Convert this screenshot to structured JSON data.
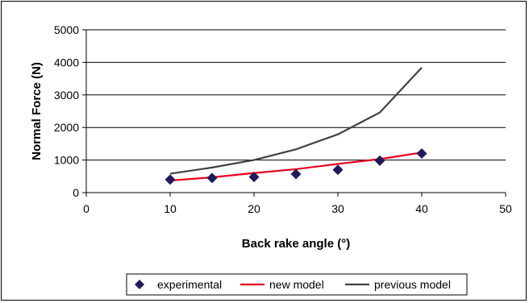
{
  "chart_data": {
    "type": "line",
    "title": "",
    "xlabel": "Back rake angle (°)",
    "ylabel": "Normal Force (N)",
    "xlim": [
      0,
      50
    ],
    "ylim": [
      0,
      5000
    ],
    "xticks": [
      "0",
      "10",
      "20",
      "30",
      "40",
      "50"
    ],
    "yticks": [
      "0",
      "1000",
      "2000",
      "3000",
      "4000",
      "5000"
    ],
    "grid": "horizontal",
    "legend_position": "bottom",
    "series": [
      {
        "name": "experimental",
        "style": "markers",
        "marker": "diamond",
        "color": "#1f1a5e",
        "x": [
          10,
          15,
          20,
          25,
          30,
          35,
          40
        ],
        "y": [
          400,
          450,
          480,
          570,
          700,
          980,
          1200
        ]
      },
      {
        "name": "new model",
        "style": "line",
        "color": "#e8001c",
        "x": [
          10,
          15,
          20,
          25,
          30,
          35,
          40
        ],
        "y": [
          370,
          470,
          600,
          720,
          880,
          1030,
          1230
        ]
      },
      {
        "name": "previous model",
        "style": "line",
        "color": "#404040",
        "x": [
          10,
          15,
          20,
          25,
          30,
          35,
          40
        ],
        "y": [
          580,
          770,
          1000,
          1330,
          1790,
          2460,
          3840
        ]
      }
    ]
  }
}
